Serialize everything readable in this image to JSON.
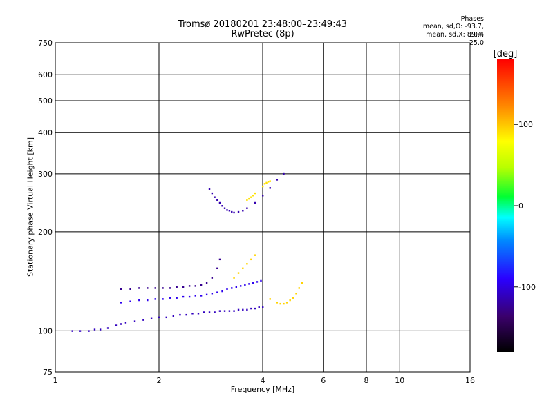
{
  "chart_data": {
    "type": "scatter",
    "title": "Tromsø 20180201 23:48:00–23:49:43",
    "subtitle": "RwPretec (8p)",
    "xlabel": "Frequency [MHz]",
    "ylabel": "Stationary phase Virtual Height [km]",
    "x_scale": "log",
    "y_scale": "log",
    "xlim": [
      1,
      16
    ],
    "ylim": [
      75,
      750
    ],
    "x_ticks": [
      1,
      2,
      4,
      6,
      8,
      10,
      16
    ],
    "y_ticks": [
      75,
      100,
      200,
      300,
      400,
      500,
      600,
      750
    ],
    "grid": true,
    "colorbar": {
      "label": "[deg]",
      "range": [
        -180,
        180
      ],
      "ticks": [
        -100,
        0,
        100
      ]
    },
    "stats": {
      "heading": "Phases",
      "line1": "mean, sd,O: -93.7, 20.4",
      "line2": "mean, sd,X:  89.4, 25.0"
    },
    "point_groups": [
      {
        "name": "O-trace low (~100 km)",
        "x": [
          1.12,
          1.18,
          1.25,
          1.3,
          1.35,
          1.42,
          1.5,
          1.55,
          1.6,
          1.7,
          1.8,
          1.9,
          2.0,
          2.1,
          2.2,
          2.3,
          2.4,
          2.5,
          2.6,
          2.7,
          2.8,
          2.9,
          3.0,
          3.1,
          3.2,
          3.3,
          3.4,
          3.5,
          3.6,
          3.7,
          3.8,
          3.9,
          4.0
        ],
        "y": [
          100,
          100,
          100,
          101,
          101,
          102,
          104,
          105,
          106,
          107,
          108,
          109,
          110,
          110,
          111,
          112,
          112,
          113,
          113,
          114,
          114,
          114,
          115,
          115,
          115,
          115,
          116,
          116,
          116,
          117,
          117,
          118,
          118
        ],
        "phase": -110
      },
      {
        "name": "O-trace middle (~125 km)",
        "x": [
          1.55,
          1.65,
          1.75,
          1.85,
          1.95,
          2.05,
          2.15,
          2.25,
          2.35,
          2.45,
          2.55,
          2.65,
          2.75,
          2.85,
          2.95,
          3.05,
          3.15,
          3.25,
          3.35,
          3.45,
          3.55,
          3.65,
          3.75,
          3.85,
          3.95
        ],
        "y": [
          122,
          123,
          124,
          124,
          125,
          125,
          126,
          126,
          127,
          127,
          128,
          128,
          129,
          130,
          131,
          132,
          134,
          135,
          136,
          137,
          138,
          139,
          140,
          141,
          142
        ],
        "phase": -95
      },
      {
        "name": "O-trace upper (~135 km)",
        "x": [
          1.55,
          1.65,
          1.75,
          1.85,
          1.95,
          2.05,
          2.15,
          2.25,
          2.35,
          2.45,
          2.55,
          2.65,
          2.75,
          2.85,
          2.95,
          3.0
        ],
        "y": [
          134,
          134,
          135,
          135,
          135,
          135,
          135,
          136,
          136,
          137,
          137,
          138,
          140,
          145,
          155,
          165
        ],
        "phase": -125
      },
      {
        "name": "X-trace (yellow/orange)",
        "x": [
          3.3,
          3.4,
          3.5,
          3.6,
          3.7,
          3.8,
          4.2,
          4.4,
          4.5,
          4.6,
          4.7,
          4.8,
          4.9,
          5.0,
          5.1,
          5.2
        ],
        "y": [
          145,
          150,
          155,
          160,
          165,
          170,
          125,
          122,
          121,
          121,
          122,
          124,
          126,
          130,
          135,
          140
        ],
        "phase": 95
      },
      {
        "name": "F-layer O cluster (~250 km)",
        "x": [
          2.8,
          2.85,
          2.9,
          2.95,
          3.0,
          3.05,
          3.1,
          3.15,
          3.2,
          3.25,
          3.3,
          3.4,
          3.5,
          3.6,
          3.8,
          4.0,
          4.2,
          4.4,
          4.6
        ],
        "y": [
          270,
          262,
          255,
          250,
          245,
          240,
          236,
          233,
          232,
          230,
          229,
          230,
          232,
          236,
          245,
          258,
          272,
          288,
          300
        ],
        "phase": -115
      },
      {
        "name": "F-layer X cluster (~255 km)",
        "x": [
          3.6,
          3.65,
          3.7,
          3.75,
          3.8,
          4.0,
          4.05,
          4.1,
          4.15,
          4.2
        ],
        "y": [
          250,
          252,
          255,
          258,
          262,
          275,
          280,
          282,
          284,
          285
        ],
        "phase": 90
      }
    ]
  }
}
